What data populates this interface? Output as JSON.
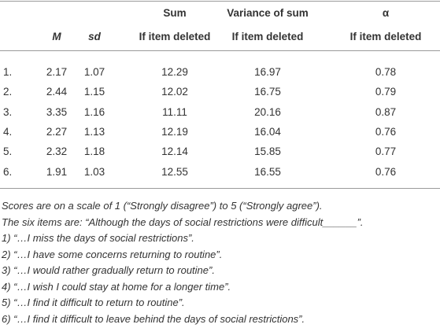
{
  "table": {
    "columns": [
      {
        "label": "M"
      },
      {
        "label": "sd"
      },
      {
        "top": "Sum",
        "label": "If item deleted"
      },
      {
        "top": "Variance of sum",
        "label": "If item deleted"
      },
      {
        "top": "α",
        "label": "If item deleted"
      }
    ],
    "rows": [
      {
        "label": "1.",
        "cells": [
          "2.17",
          "1.07",
          "12.29",
          "16.97",
          "0.78"
        ]
      },
      {
        "label": "2.",
        "cells": [
          "2.44",
          "1.15",
          "12.02",
          "16.75",
          "0.79"
        ]
      },
      {
        "label": "3.",
        "cells": [
          "3.35",
          "1.16",
          "11.11",
          "20.16",
          "0.87"
        ]
      },
      {
        "label": "4.",
        "cells": [
          "2.27",
          "1.13",
          "12.19",
          "16.04",
          "0.76"
        ]
      },
      {
        "label": "5.",
        "cells": [
          "2.32",
          "1.18",
          "12.14",
          "15.85",
          "0.77"
        ]
      },
      {
        "label": "6.",
        "cells": [
          "1.91",
          "1.03",
          "12.55",
          "16.55",
          "0.76"
        ]
      }
    ]
  },
  "notes": [
    "Scores are on a scale of 1 (“Strongly disagree”) to 5 (“Strongly agree”).",
    "The six items are: “Although the days of social restrictions were difficult______”.",
    "1) “…I miss the days of social restrictions”.",
    "2) “…I have some concerns returning to routine”.",
    "3) “…I would rather gradually return to routine”.",
    "4) “…I wish I could stay at home for a longer time”.",
    "5) “…I find it difficult to return to routine”.",
    "6) “…I find it difficult to leave behind the days of social restrictions”."
  ]
}
